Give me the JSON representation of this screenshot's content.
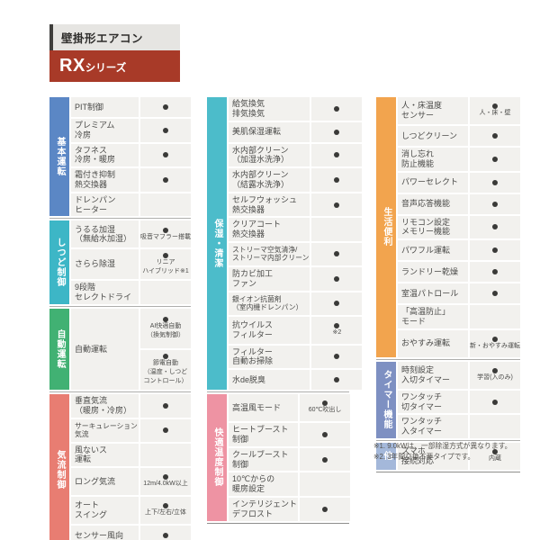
{
  "header": {
    "product_type": "壁掛形エアコン",
    "series_name": "RX",
    "series_suffix": "シリーズ"
  },
  "colors": {
    "header_bar_bg": "#e6e5e2",
    "header_accent": "#3f3e3c",
    "series_bar_bg": "#a83a28",
    "row_bg": "#f2f1ee",
    "dot_color": "#3a3a38",
    "section_divider": "#aeaeac",
    "table_bottom": "#8f8f8d"
  },
  "columns": [
    [
      {
        "label": "基本運転",
        "color": "#5b87c5",
        "rows": [
          {
            "name": [
              "PIT制御"
            ],
            "dot": true
          },
          {
            "name": [
              "プレミアム",
              "冷房"
            ],
            "dot": true
          },
          {
            "name": [
              "タフネス",
              "冷房・暖房"
            ],
            "dot": true
          },
          {
            "name": [
              "霜付き抑制",
              "熱交換器"
            ],
            "dot": true
          },
          {
            "name": [
              "ドレンパン",
              "ヒーター"
            ],
            "dot": false
          }
        ]
      },
      {
        "label": "しつど制御",
        "color": "#3db6c6",
        "rows": [
          {
            "name": [
              "うるる加湿",
              "（無給水加湿）"
            ],
            "dot": true,
            "note": [
              "吸音マフラー搭載"
            ]
          },
          {
            "name": [
              "さらら除湿"
            ],
            "dot": true,
            "note": [
              "リニア",
              "ハイブリッド※1"
            ]
          },
          {
            "name": [
              "9段階",
              "セレクトドライ"
            ],
            "dot": false
          }
        ]
      },
      {
        "label": "自動運転",
        "color": "#41b173",
        "merged": {
          "name": [
            "自動運転"
          ],
          "values": [
            {
              "dot": true,
              "note": [
                "AI快適自動",
                "（換気制御）"
              ]
            },
            {
              "dot": true,
              "note": [
                "節電自動",
                "（温度・しつど",
                "コントロール）"
              ]
            }
          ]
        }
      },
      {
        "label": "気流制御",
        "color": "#e87d72",
        "rows": [
          {
            "name": [
              "垂直気流",
              "（暖房・冷房）"
            ],
            "dot": true
          },
          {
            "name": [
              "サーキュレーション",
              "気流"
            ],
            "dot": true
          },
          {
            "name": [
              "風ないス",
              "運転"
            ],
            "dot": false
          },
          {
            "name": [
              "ロング気流"
            ],
            "dot": true,
            "note": [
              "12m/4.0kW以上"
            ]
          },
          {
            "name": [
              "オート",
              "スイング"
            ],
            "dot": true,
            "note": [
              "上下/左右/立体"
            ]
          },
          {
            "name": [
              "センサー風向"
            ],
            "dot": true
          }
        ]
      }
    ],
    [
      {
        "label": "保湿・清潔",
        "color": "#4cbcca",
        "rows": [
          {
            "name": [
              "給気換気",
              "排気換気"
            ],
            "dot": true
          },
          {
            "name": [
              "美肌保湿運転"
            ],
            "dot": true
          },
          {
            "name": [
              "水内部クリーン",
              "（加湿水洗浄）"
            ],
            "dot": true
          },
          {
            "name": [
              "水内部クリーン",
              "（結露水洗浄）"
            ],
            "dot": true
          },
          {
            "name": [
              "セルフウォッシュ",
              "熱交換器"
            ],
            "dot": true
          },
          {
            "name": [
              "クリアコート",
              "熱交換器"
            ],
            "dot": false
          },
          {
            "name": [
              "ストリーマ空気清浄/",
              "ストリーマ内部クリーン"
            ],
            "dot": true
          },
          {
            "name": [
              "防カビ加工",
              "ファン"
            ],
            "dot": true
          },
          {
            "name": [
              "銀イオン抗菌剤",
              "（室内機ドレンパン）"
            ],
            "dot": true
          },
          {
            "name": [
              "抗ウイルス",
              "フィルター"
            ],
            "dot": true,
            "note": [
              "※2"
            ]
          },
          {
            "name": [
              "フィルター",
              "自動お掃除"
            ],
            "dot": true
          },
          {
            "name": [
              "水de脱臭"
            ],
            "dot": true
          }
        ]
      },
      {
        "label": "快適温度制御",
        "color": "#ee93a3",
        "rows": [
          {
            "name": [
              "高温風モード"
            ],
            "dot": true,
            "note": [
              "60℃吹出し"
            ]
          },
          {
            "name": [
              "ヒートブースト",
              "制御"
            ],
            "dot": true
          },
          {
            "name": [
              "クールブースト",
              "制御"
            ],
            "dot": true
          },
          {
            "name": [
              "10℃からの",
              "暖房設定"
            ],
            "dot": false
          },
          {
            "name": [
              "インテリジェント",
              "デフロスト"
            ],
            "dot": true
          }
        ]
      }
    ],
    [
      {
        "label": "生活便利",
        "color": "#f2a44e",
        "rows": [
          {
            "name": [
              "人・床温度",
              "センサー"
            ],
            "dot": true,
            "note": [
              "人・床・壁"
            ]
          },
          {
            "name": [
              "しつどクリーン"
            ],
            "dot": true
          },
          {
            "name": [
              "消し忘れ",
              "防止機能"
            ],
            "dot": true
          },
          {
            "name": [
              "パワーセレクト"
            ],
            "dot": true
          },
          {
            "name": [
              "音声応答機能"
            ],
            "dot": true
          },
          {
            "name": [
              "リモコン設定",
              "メモリー機能"
            ],
            "dot": true
          },
          {
            "name": [
              "パワフル運転"
            ],
            "dot": true
          },
          {
            "name": [
              "ランドリー乾燥"
            ],
            "dot": true
          },
          {
            "name": [
              "室温パトロール"
            ],
            "dot": true
          },
          {
            "name": [
              "「高温防止」",
              "モード"
            ],
            "dot": false
          },
          {
            "name": [
              "おやすみ運転"
            ],
            "dot": true,
            "note": [
              "新・おやすみ運転"
            ]
          }
        ]
      },
      {
        "label": "タイマー機能",
        "color": "#7e90c2",
        "rows": [
          {
            "name": [
              "時刻設定",
              "入切タイマー"
            ],
            "dot": true,
            "note": [
              "学習(入のみ)"
            ]
          },
          {
            "name": [
              "ワンタッチ",
              "切タイマー"
            ],
            "dot": true
          },
          {
            "name": [
              "ワンタッチ",
              "入タイマー"
            ],
            "dot": false
          }
        ]
      },
      {
        "label": "他",
        "color": "#a4b8da",
        "rows": [
          {
            "name": [
              "スマホ",
              "接続対応"
            ],
            "dot": true,
            "note": [
              "内蔵"
            ]
          }
        ]
      }
    ]
  ],
  "footnotes": [
    "※1. 9.0kWは、一部除湿方式が異なります。",
    "※2. 3年間交換不要タイプです。"
  ]
}
